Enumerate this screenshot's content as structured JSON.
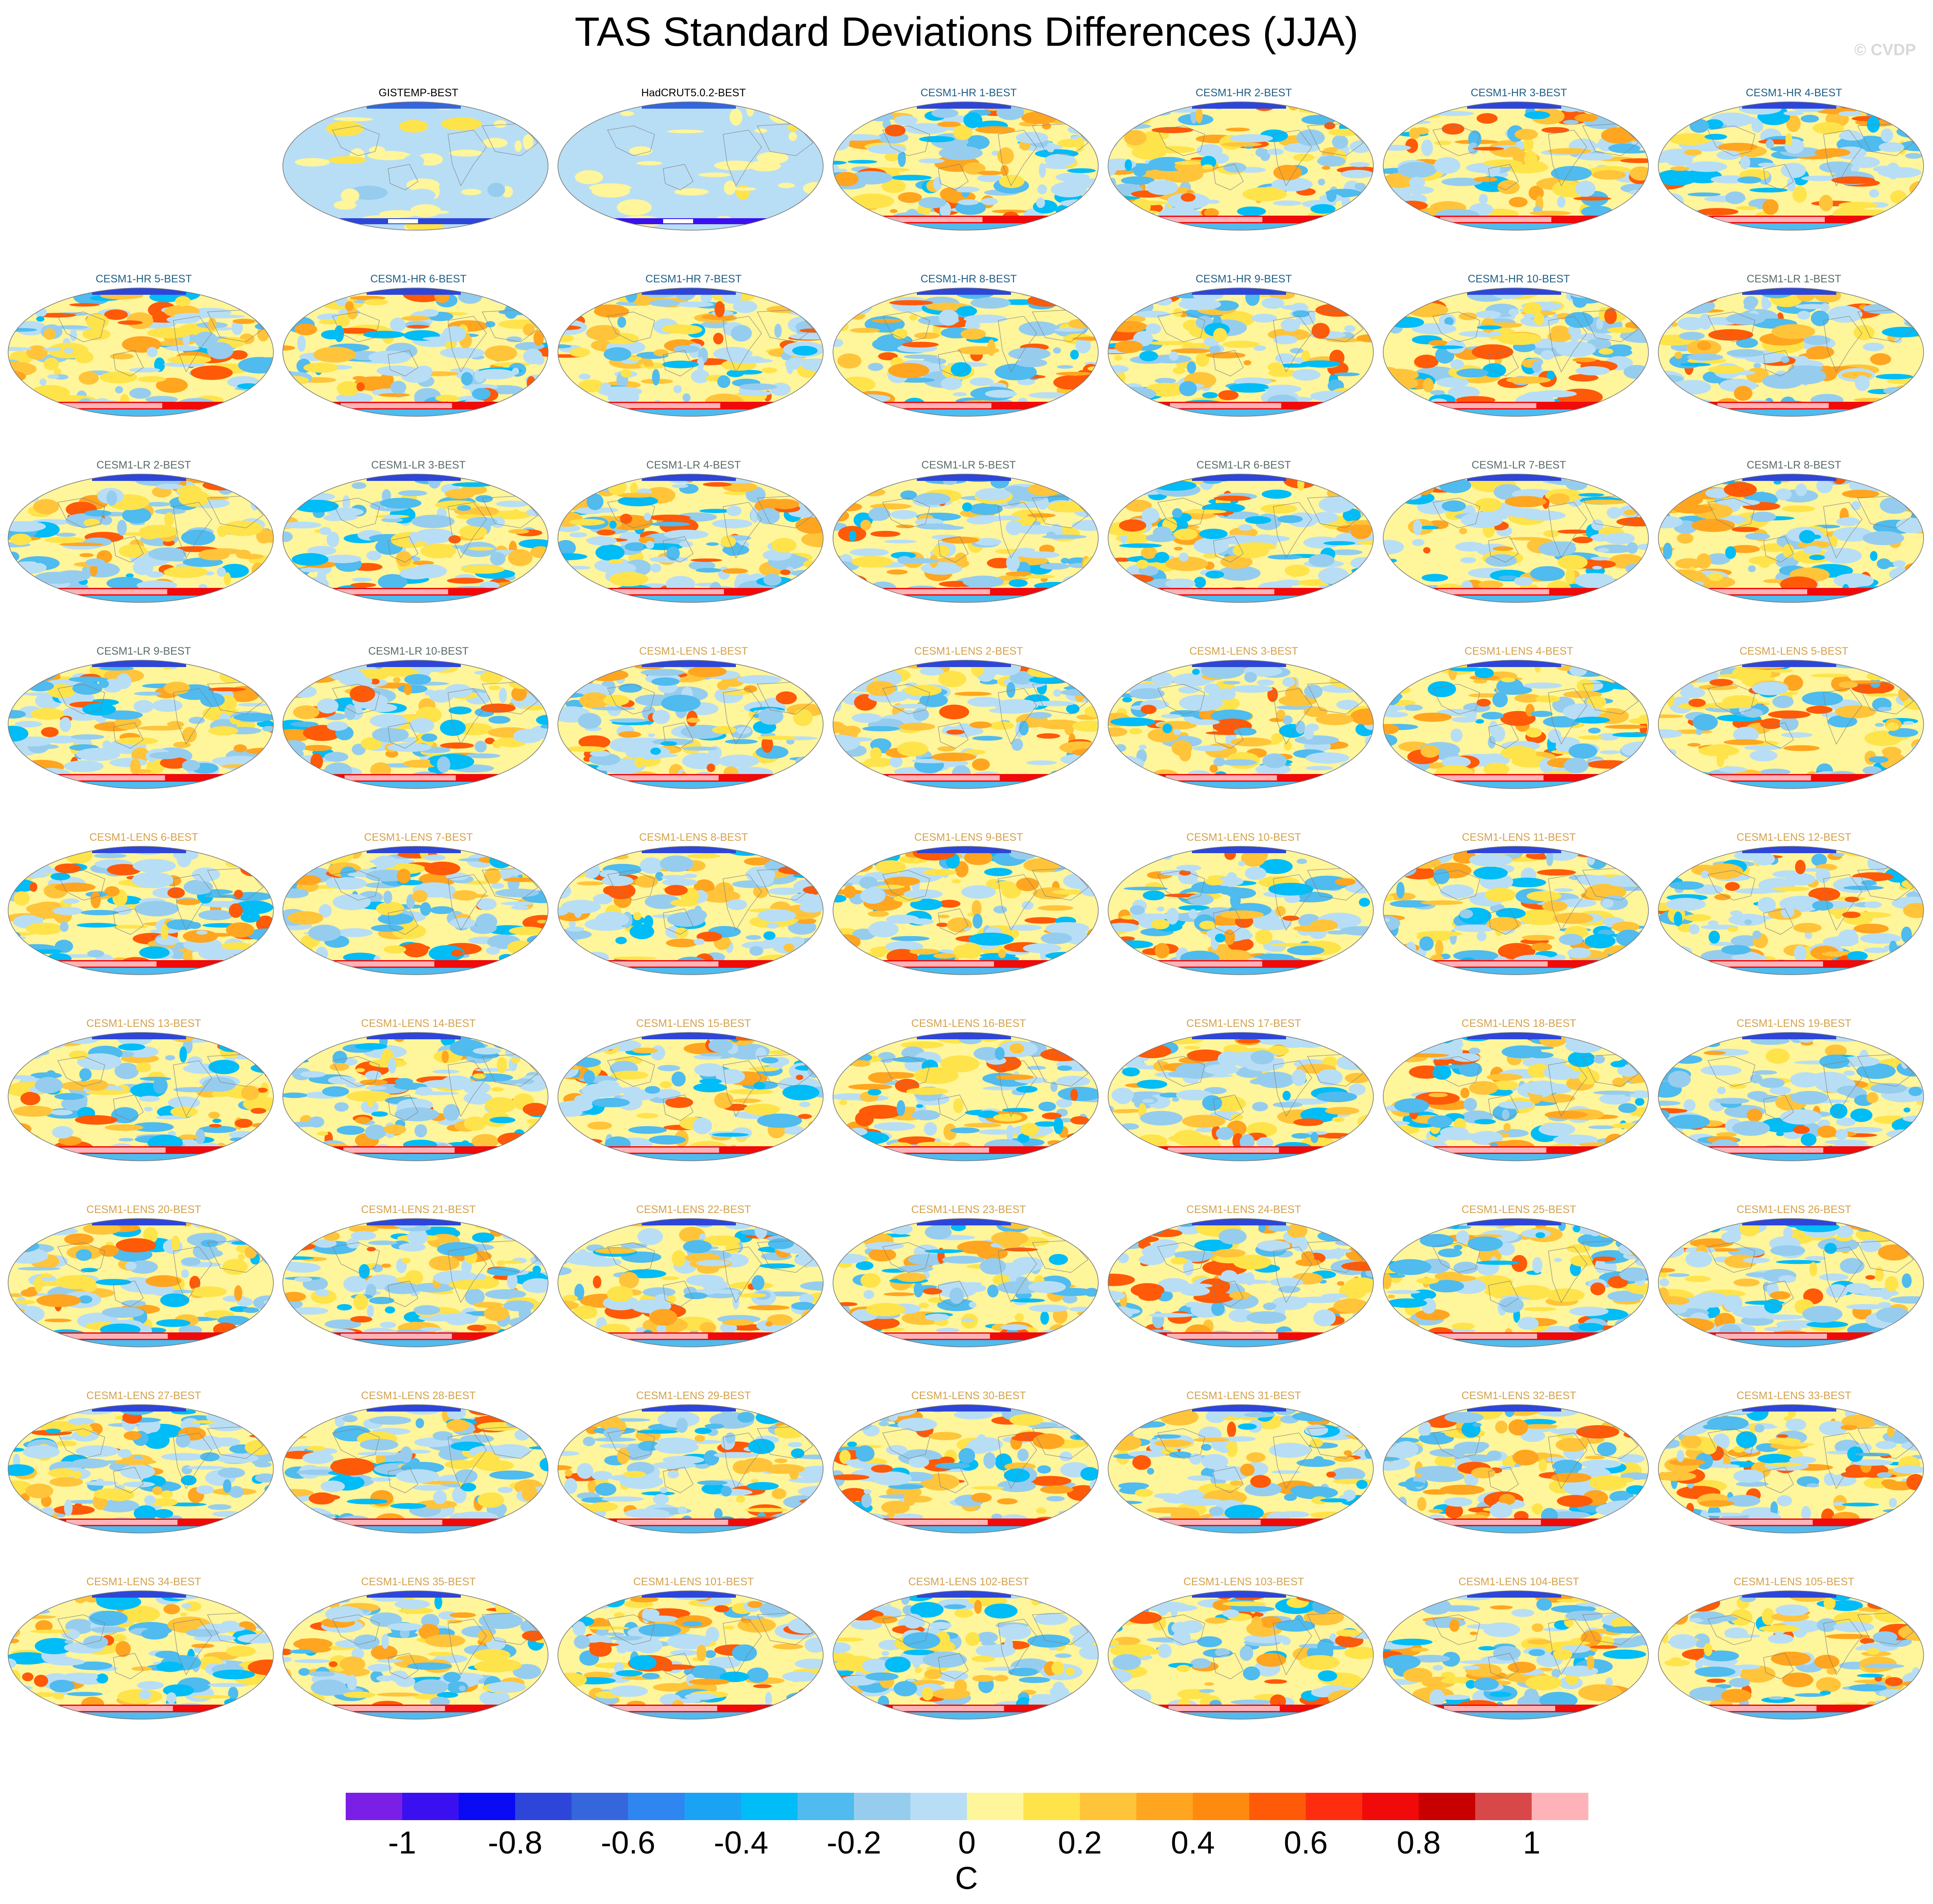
{
  "title": "TAS Standard Deviations Differences (JJA)",
  "watermark": "© CVDP",
  "colors": {
    "obs_title": "#000000",
    "hr_title": "#1f5f86",
    "lr_title": "#5b6b6b",
    "lens_title": "#d4a24c"
  },
  "chart_data": {
    "type": "heatmap",
    "projection": "robinson-global-maps",
    "panel_titles": [
      "GISTEMP-BEST",
      "HadCRUT5.0.2-BEST",
      "CESM1-HR 1-BEST",
      "CESM1-HR 2-BEST",
      "CESM1-HR 3-BEST",
      "CESM1-HR 4-BEST",
      "CESM1-HR 5-BEST",
      "CESM1-HR 6-BEST",
      "CESM1-HR 7-BEST",
      "CESM1-HR 8-BEST",
      "CESM1-HR 9-BEST",
      "CESM1-HR 10-BEST",
      "CESM1-LR 1-BEST",
      "CESM1-LR 2-BEST",
      "CESM1-LR 3-BEST",
      "CESM1-LR 4-BEST",
      "CESM1-LR 5-BEST",
      "CESM1-LR 6-BEST",
      "CESM1-LR 7-BEST",
      "CESM1-LR 8-BEST",
      "CESM1-LR 9-BEST",
      "CESM1-LR 10-BEST",
      "CESM1-LENS 1-BEST",
      "CESM1-LENS 2-BEST",
      "CESM1-LENS 3-BEST",
      "CESM1-LENS 4-BEST",
      "CESM1-LENS 5-BEST",
      "CESM1-LENS 6-BEST",
      "CESM1-LENS 7-BEST",
      "CESM1-LENS 8-BEST",
      "CESM1-LENS 9-BEST",
      "CESM1-LENS 10-BEST",
      "CESM1-LENS 11-BEST",
      "CESM1-LENS 12-BEST",
      "CESM1-LENS 13-BEST",
      "CESM1-LENS 14-BEST",
      "CESM1-LENS 15-BEST",
      "CESM1-LENS 16-BEST",
      "CESM1-LENS 17-BEST",
      "CESM1-LENS 18-BEST",
      "CESM1-LENS 19-BEST",
      "CESM1-LENS 20-BEST",
      "CESM1-LENS 21-BEST",
      "CESM1-LENS 22-BEST",
      "CESM1-LENS 23-BEST",
      "CESM1-LENS 24-BEST",
      "CESM1-LENS 25-BEST",
      "CESM1-LENS 26-BEST",
      "CESM1-LENS 27-BEST",
      "CESM1-LENS 28-BEST",
      "CESM1-LENS 29-BEST",
      "CESM1-LENS 30-BEST",
      "CESM1-LENS 31-BEST",
      "CESM1-LENS 32-BEST",
      "CESM1-LENS 33-BEST",
      "CESM1-LENS 34-BEST",
      "CESM1-LENS 35-BEST",
      "CESM1-LENS 101-BEST",
      "CESM1-LENS 102-BEST",
      "CESM1-LENS 103-BEST",
      "CESM1-LENS 104-BEST",
      "CESM1-LENS 105-BEST"
    ],
    "colorbar": {
      "unit": "C",
      "tick_labels": [
        "-1",
        "-0.8",
        "-0.6",
        "-0.4",
        "-0.2",
        "0",
        "0.2",
        "0.4",
        "0.6",
        "0.8",
        "1"
      ],
      "tick_values": [
        -1,
        -0.8,
        -0.6,
        -0.4,
        -0.2,
        0,
        0.2,
        0.4,
        0.6,
        0.8,
        1
      ],
      "colors": [
        "#7b1ee6",
        "#3a10f0",
        "#0a0af5",
        "#2d46d9",
        "#3566dc",
        "#2f86f0",
        "#1aa3f5",
        "#00bcf7",
        "#4fbbee",
        "#96cdee",
        "#b8def5",
        "#fff59a",
        "#ffe34a",
        "#ffc43a",
        "#ffa51f",
        "#ff8a10",
        "#ff5a08",
        "#ff2d10",
        "#f00a0a",
        "#c80000",
        "#d84848",
        "#ffb3b8"
      ]
    }
  }
}
